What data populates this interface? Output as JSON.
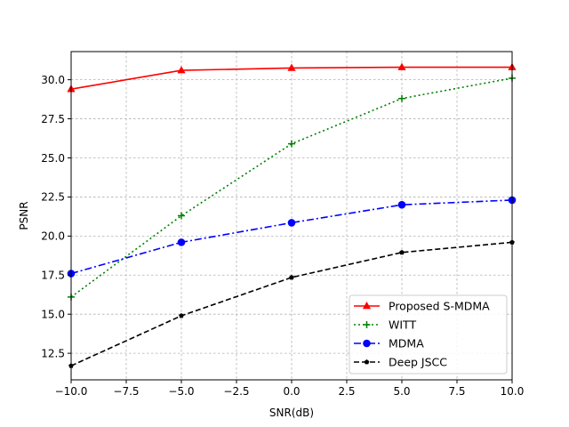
{
  "chart_data": {
    "type": "line",
    "title": "",
    "xlabel": "SNR(dB)",
    "ylabel": "PSNR",
    "xlim": [
      -10,
      10
    ],
    "ylim": [
      10.8,
      31.8
    ],
    "grid": true,
    "legend_position": "lower-right",
    "x": [
      -10,
      -5,
      0,
      5,
      10
    ],
    "x_ticks": [
      -10,
      -7.5,
      -5,
      -2.5,
      0,
      2.5,
      5,
      7.5,
      10
    ],
    "x_tick_labels": [
      "−10.0",
      "−7.5",
      "−5.0",
      "−2.5",
      "0.0",
      "2.5",
      "5.0",
      "7.5",
      "10.0"
    ],
    "y_ticks": [
      12.5,
      15,
      17.5,
      20,
      22.5,
      25,
      27.5,
      30
    ],
    "y_tick_labels": [
      "12.5",
      "15.0",
      "17.5",
      "20.0",
      "22.5",
      "25.0",
      "27.5",
      "30.0"
    ],
    "series": [
      {
        "name": "Proposed S-MDMA",
        "values": [
          29.4,
          30.6,
          30.75,
          30.8,
          30.8
        ],
        "color": "#ff0000",
        "marker": "triangle",
        "dash": "solid"
      },
      {
        "name": "WITT",
        "values": [
          16.1,
          21.3,
          25.9,
          28.8,
          30.1
        ],
        "color": "#008000",
        "marker": "plus",
        "dash": "dotted"
      },
      {
        "name": "MDMA",
        "values": [
          17.6,
          19.6,
          20.85,
          22.0,
          22.3
        ],
        "color": "#0000ff",
        "marker": "circle",
        "dash": "dashdot"
      },
      {
        "name": "Deep JSCC",
        "values": [
          11.7,
          14.9,
          17.35,
          18.95,
          19.6
        ],
        "color": "#000000",
        "marker": "pentagon",
        "dash": "dashed"
      }
    ]
  }
}
